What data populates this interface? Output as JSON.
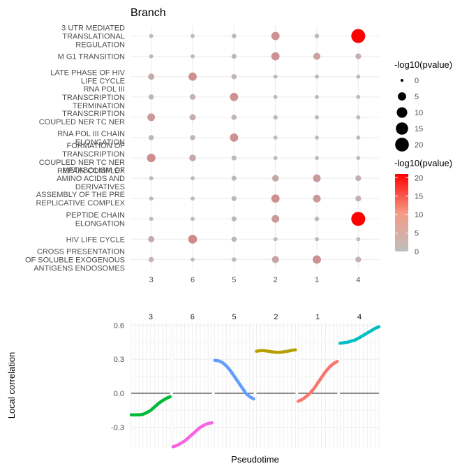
{
  "chart_data": [
    {
      "type": "scatter",
      "title": "Branch",
      "xlabel": "",
      "ylabel": "",
      "categories": [
        "3",
        "6",
        "5",
        "2",
        "1",
        "4"
      ],
      "rows": [
        [
          "3 UTR MEDIATED",
          "TRANSLATIONAL",
          "REGULATION"
        ],
        [
          "M G1 TRANSITION"
        ],
        [
          "LATE PHASE OF HIV",
          "LIFE CYCLE"
        ],
        [
          "RNA POL III",
          "TRANSCRIPTION",
          "TERMINATION"
        ],
        [
          "TRANSCRIPTION",
          "COUPLED NER TC NER"
        ],
        [
          "RNA POL III CHAIN",
          "ELONGATION"
        ],
        [
          "FORMATION OF",
          "TRANSCRIPTION",
          "COUPLED NER TC NER",
          "REPAIR COMPLEX"
        ],
        [
          "METABOLISM OF",
          "AMINO ACIDS AND",
          "DERIVATIVES"
        ],
        [
          "ASSEMBLY OF THE PRE",
          "REPLICATIVE COMPLEX"
        ],
        [
          "PEPTIDE CHAIN",
          "ELONGATION"
        ],
        [
          "HIV LIFE CYCLE"
        ],
        [
          "CROSS PRESENTATION",
          "OF SOLUBLE EXOGENOUS",
          "ANTIGENS ENDOSOMES"
        ]
      ],
      "neglog10_pvalue": [
        [
          0.3,
          0.3,
          0.5,
          5,
          0.5,
          21
        ],
        [
          0.3,
          0.3,
          0.8,
          5,
          3,
          1.5
        ],
        [
          2,
          5,
          1,
          0.3,
          0.3,
          0.3
        ],
        [
          1,
          1.5,
          5,
          0.3,
          0.3,
          0.3
        ],
        [
          4,
          2,
          1,
          0.5,
          0.3,
          0.3
        ],
        [
          1,
          1,
          5,
          0.3,
          0.3,
          0.3
        ],
        [
          5.5,
          2.5,
          0.8,
          0.3,
          0.3,
          0.3
        ],
        [
          0.3,
          0.3,
          0.8,
          2.5,
          4,
          1.5
        ],
        [
          0.3,
          0.3,
          0.8,
          5,
          4,
          1.5
        ],
        [
          0.3,
          0.3,
          0.8,
          4,
          0.5,
          21
        ],
        [
          2,
          6,
          1,
          0.3,
          0.3,
          0.3
        ],
        [
          1,
          0.3,
          0.5,
          3,
          5,
          1.5
        ]
      ],
      "size_legend": {
        "title": "-log10(pvalue)",
        "breaks": [
          0,
          5,
          10,
          15,
          20
        ]
      },
      "color_legend": {
        "title": "-log10(pvalue)",
        "breaks": [
          0,
          5,
          10,
          15,
          20
        ],
        "low": "#bebebe",
        "high": "#ff0000",
        "limits": [
          0,
          21
        ]
      },
      "legend_position": "right",
      "grid": true
    },
    {
      "type": "line",
      "xlabel": "Pseudotime",
      "ylabel": "Local correlation",
      "ylim": [
        -0.48,
        0.62
      ],
      "yticks": [
        "-0.3",
        "0.0",
        "0.3",
        "0.6"
      ],
      "ytick_values": [
        -0.3,
        0.0,
        0.3,
        0.6
      ],
      "reference_line": 0.0,
      "grid": true,
      "series": [
        {
          "name": "3",
          "color": "#00ba38",
          "x": [
            0,
            0.1,
            0.2,
            0.3,
            0.4,
            0.5,
            0.6,
            0.7,
            0.8,
            0.9,
            1.0
          ],
          "values": [
            -0.19,
            -0.19,
            -0.19,
            -0.185,
            -0.17,
            -0.15,
            -0.12,
            -0.09,
            -0.065,
            -0.045,
            -0.03
          ]
        },
        {
          "name": "6",
          "color": "#f564e3",
          "x": [
            0,
            0.1,
            0.2,
            0.3,
            0.4,
            0.5,
            0.6,
            0.7,
            0.8,
            0.9,
            1.0
          ],
          "values": [
            -0.47,
            -0.46,
            -0.44,
            -0.42,
            -0.39,
            -0.36,
            -0.33,
            -0.3,
            -0.28,
            -0.265,
            -0.26
          ]
        },
        {
          "name": "5",
          "color": "#619cff",
          "x": [
            0,
            0.1,
            0.2,
            0.3,
            0.4,
            0.5,
            0.6,
            0.7,
            0.8,
            0.9,
            1.0
          ],
          "values": [
            0.29,
            0.285,
            0.27,
            0.24,
            0.2,
            0.15,
            0.1,
            0.05,
            0.0,
            -0.03,
            -0.05
          ]
        },
        {
          "name": "2",
          "color": "#b79f00",
          "x": [
            0,
            0.1,
            0.2,
            0.3,
            0.4,
            0.5,
            0.6,
            0.7,
            0.8,
            0.9,
            1.0
          ],
          "values": [
            0.37,
            0.375,
            0.375,
            0.37,
            0.365,
            0.36,
            0.36,
            0.365,
            0.37,
            0.378,
            0.382
          ]
        },
        {
          "name": "1",
          "color": "#f8766d",
          "x": [
            0,
            0.1,
            0.2,
            0.3,
            0.4,
            0.5,
            0.6,
            0.7,
            0.8,
            0.9,
            1.0
          ],
          "values": [
            -0.07,
            -0.055,
            -0.03,
            0.0,
            0.04,
            0.09,
            0.14,
            0.19,
            0.23,
            0.26,
            0.28
          ]
        },
        {
          "name": "4",
          "color": "#00bfc4",
          "x": [
            0,
            0.1,
            0.2,
            0.3,
            0.4,
            0.5,
            0.6,
            0.7,
            0.8,
            0.9,
            1.0
          ],
          "values": [
            0.44,
            0.445,
            0.45,
            0.46,
            0.47,
            0.49,
            0.51,
            0.53,
            0.55,
            0.57,
            0.585
          ]
        }
      ]
    }
  ]
}
